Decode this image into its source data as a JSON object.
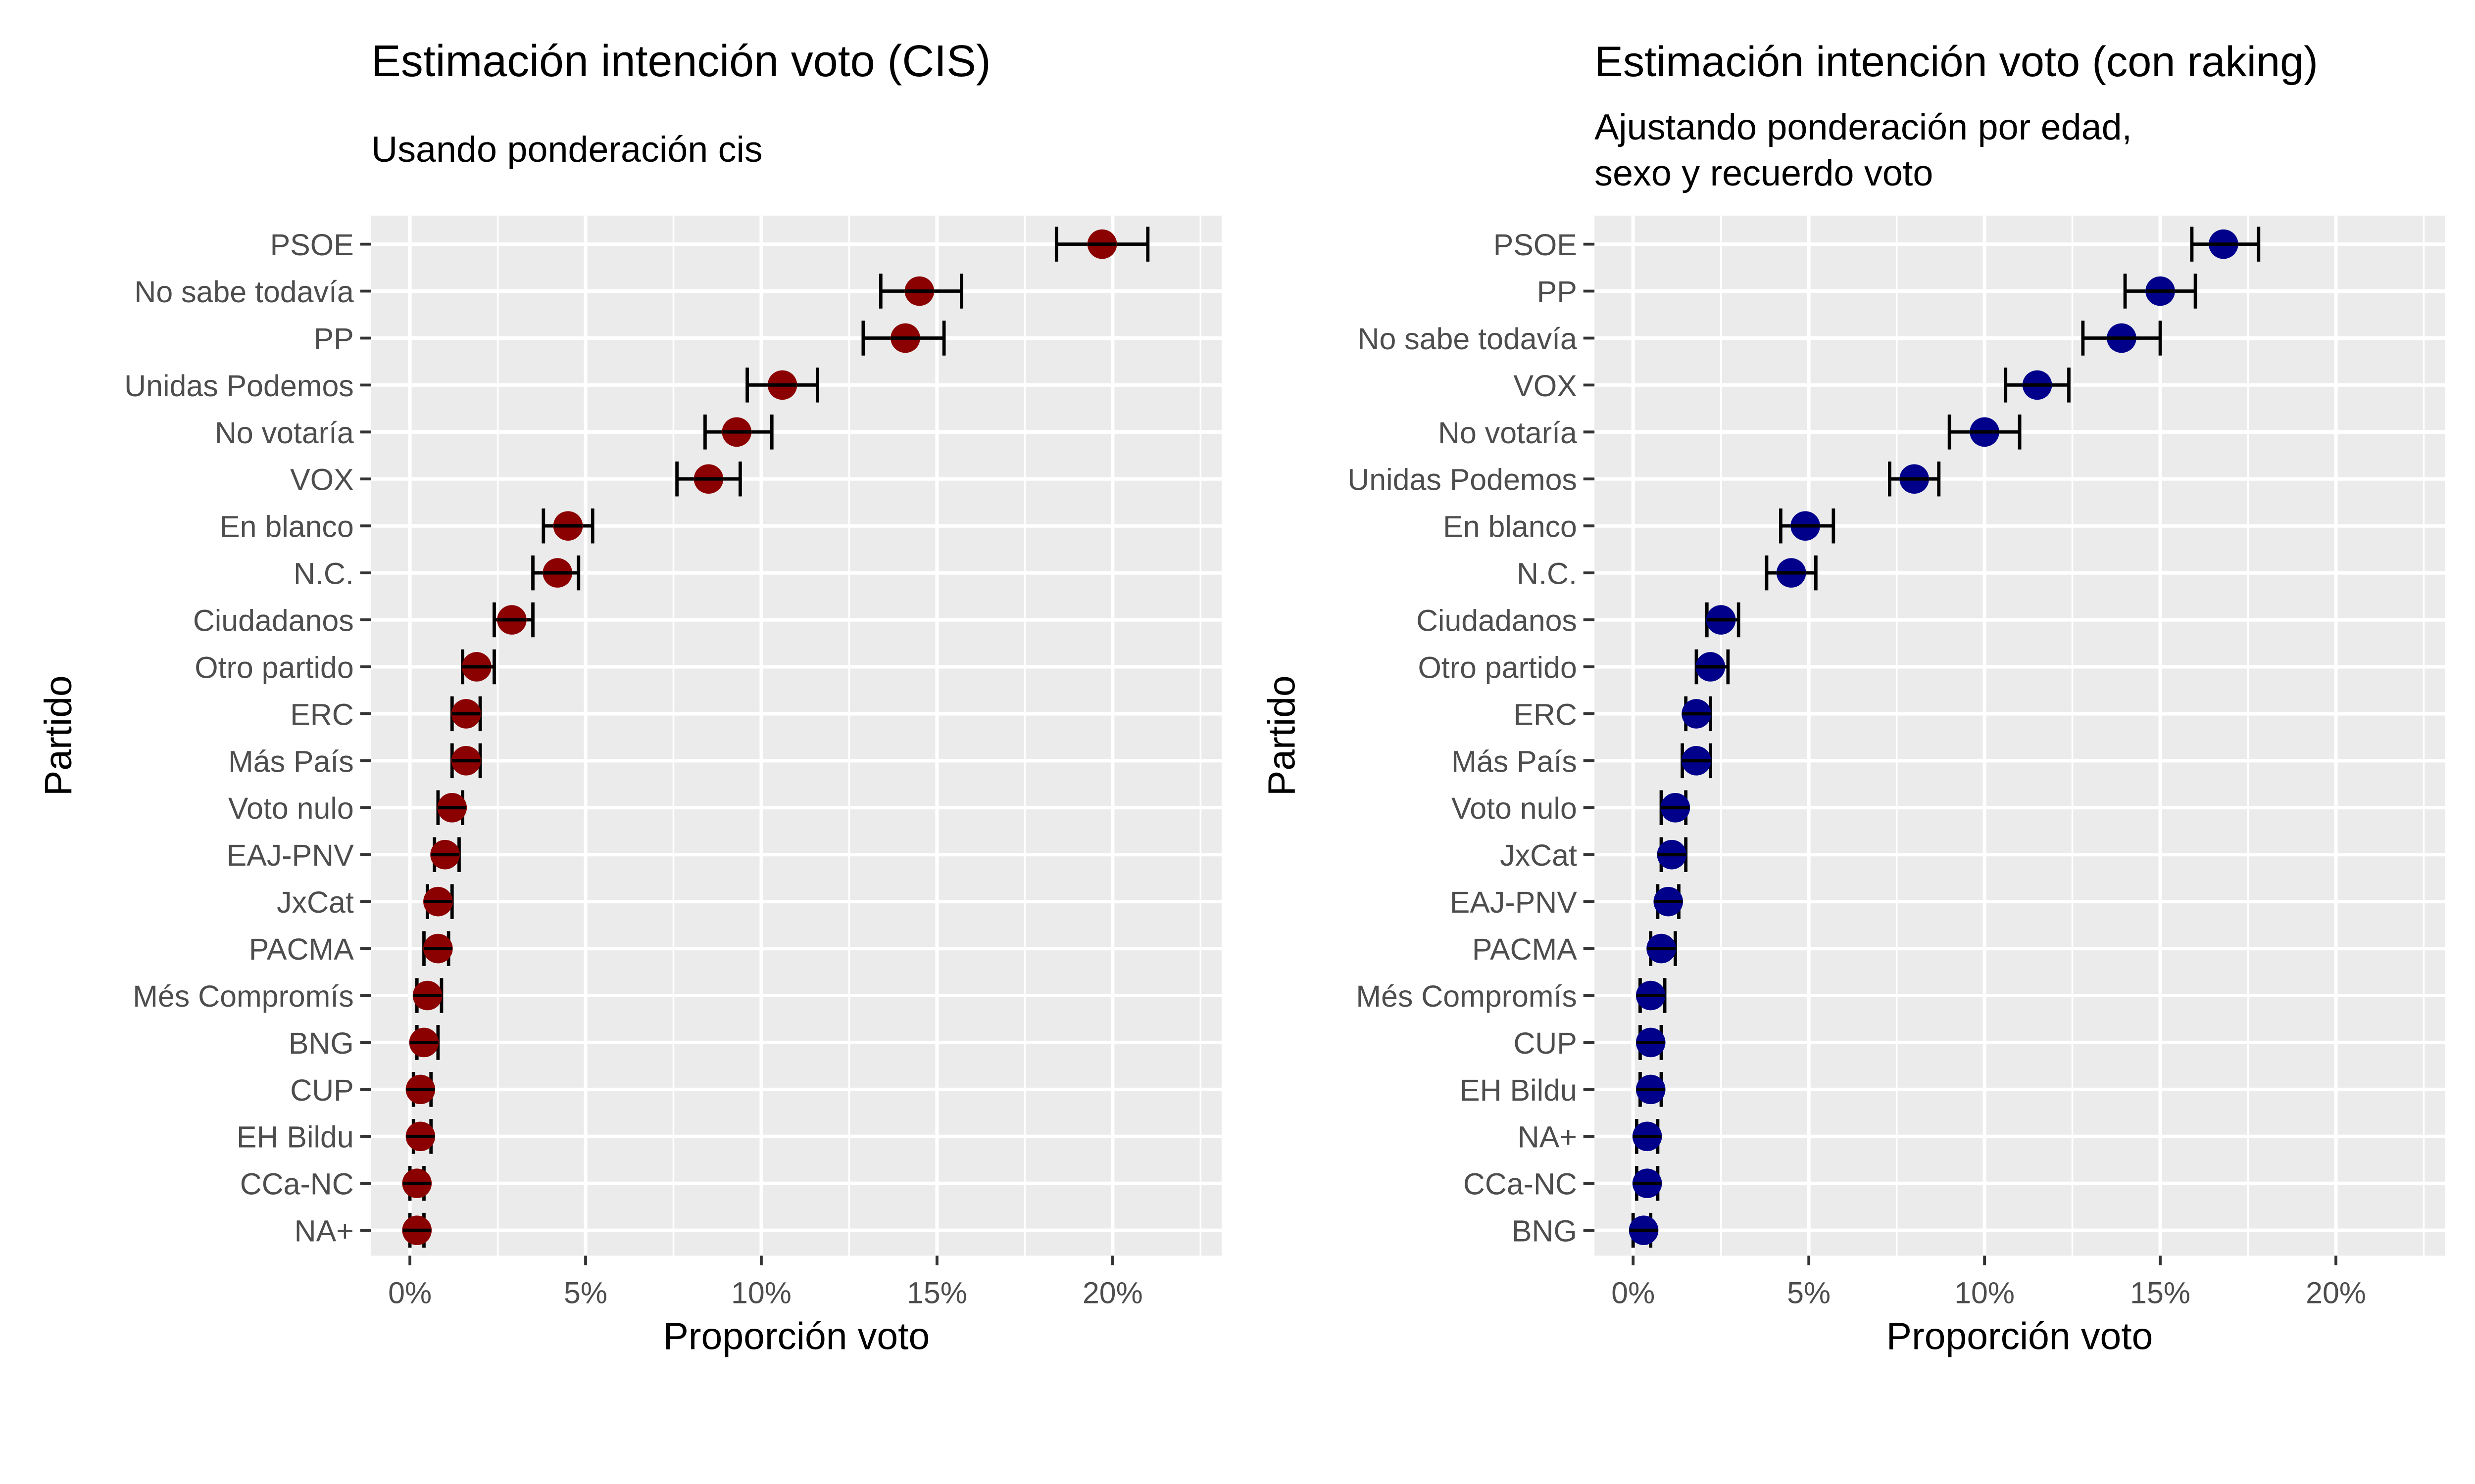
{
  "chart_data": [
    {
      "type": "scatter",
      "title": "Estimación intención voto (CIS)",
      "subtitle": [
        "Usando ponderación cis"
      ],
      "xlabel": "Proporción voto",
      "ylabel": "Partido",
      "xlim": [
        -1.1,
        23.1
      ],
      "xticks": [
        0,
        5,
        10,
        15,
        20
      ],
      "xtick_labels": [
        "0%",
        "5%",
        "10%",
        "15%",
        "20%"
      ],
      "grid": true,
      "point_color": "#8B0000",
      "errorbar_color": "#000000",
      "categories": [
        "PSOE",
        "No sabe todavía",
        "PP",
        "Unidas Podemos",
        "No votaría",
        "VOX",
        "En blanco",
        "N.C.",
        "Ciudadanos",
        "Otro partido",
        "ERC",
        "Más País",
        "Voto nulo",
        "EAJ-PNV",
        "JxCat",
        "PACMA",
        "Més Compromís",
        "BNG",
        "CUP",
        "EH Bildu",
        "CCa-NC",
        "NA+"
      ],
      "values": [
        19.7,
        14.5,
        14.1,
        10.6,
        9.3,
        8.5,
        4.5,
        4.2,
        2.9,
        1.9,
        1.6,
        1.6,
        1.2,
        1.0,
        0.8,
        0.8,
        0.5,
        0.4,
        0.3,
        0.3,
        0.2,
        0.2
      ],
      "lower": [
        18.4,
        13.4,
        12.9,
        9.6,
        8.4,
        7.6,
        3.8,
        3.5,
        2.4,
        1.5,
        1.2,
        1.2,
        0.8,
        0.7,
        0.5,
        0.4,
        0.2,
        0.2,
        0.1,
        0.1,
        0.0,
        0.0
      ],
      "upper": [
        21.0,
        15.7,
        15.2,
        11.6,
        10.3,
        9.4,
        5.2,
        4.8,
        3.5,
        2.4,
        2.0,
        2.0,
        1.5,
        1.4,
        1.2,
        1.1,
        0.9,
        0.8,
        0.6,
        0.6,
        0.4,
        0.4
      ]
    },
    {
      "type": "scatter",
      "title": "Estimación intención voto (con raking)",
      "subtitle": [
        "Ajustando ponderación por edad,",
        "sexo y recuerdo voto"
      ],
      "xlabel": "Proporción voto",
      "ylabel": "Partido",
      "xlim": [
        -1.1,
        23.1
      ],
      "xticks": [
        0,
        5,
        10,
        15,
        20
      ],
      "xtick_labels": [
        "0%",
        "5%",
        "10%",
        "15%",
        "20%"
      ],
      "grid": true,
      "point_color": "#00008B",
      "errorbar_color": "#000000",
      "categories": [
        "PSOE",
        "PP",
        "No sabe todavía",
        "VOX",
        "No votaría",
        "Unidas Podemos",
        "En blanco",
        "N.C.",
        "Ciudadanos",
        "Otro partido",
        "ERC",
        "Más País",
        "Voto nulo",
        "JxCat",
        "EAJ-PNV",
        "PACMA",
        "Més Compromís",
        "CUP",
        "EH Bildu",
        "NA+",
        "CCa-NC",
        "BNG"
      ],
      "values": [
        16.8,
        15.0,
        13.9,
        11.5,
        10.0,
        8.0,
        4.9,
        4.5,
        2.5,
        2.2,
        1.8,
        1.8,
        1.2,
        1.1,
        1.0,
        0.8,
        0.5,
        0.5,
        0.5,
        0.4,
        0.4,
        0.3
      ],
      "lower": [
        15.9,
        14.0,
        12.8,
        10.6,
        9.0,
        7.3,
        4.2,
        3.8,
        2.1,
        1.8,
        1.5,
        1.4,
        0.8,
        0.8,
        0.7,
        0.5,
        0.2,
        0.2,
        0.2,
        0.1,
        0.1,
        0.0
      ],
      "upper": [
        17.8,
        16.0,
        15.0,
        12.4,
        11.0,
        8.7,
        5.7,
        5.2,
        3.0,
        2.7,
        2.2,
        2.2,
        1.5,
        1.5,
        1.3,
        1.2,
        0.9,
        0.8,
        0.8,
        0.7,
        0.7,
        0.5
      ]
    }
  ]
}
